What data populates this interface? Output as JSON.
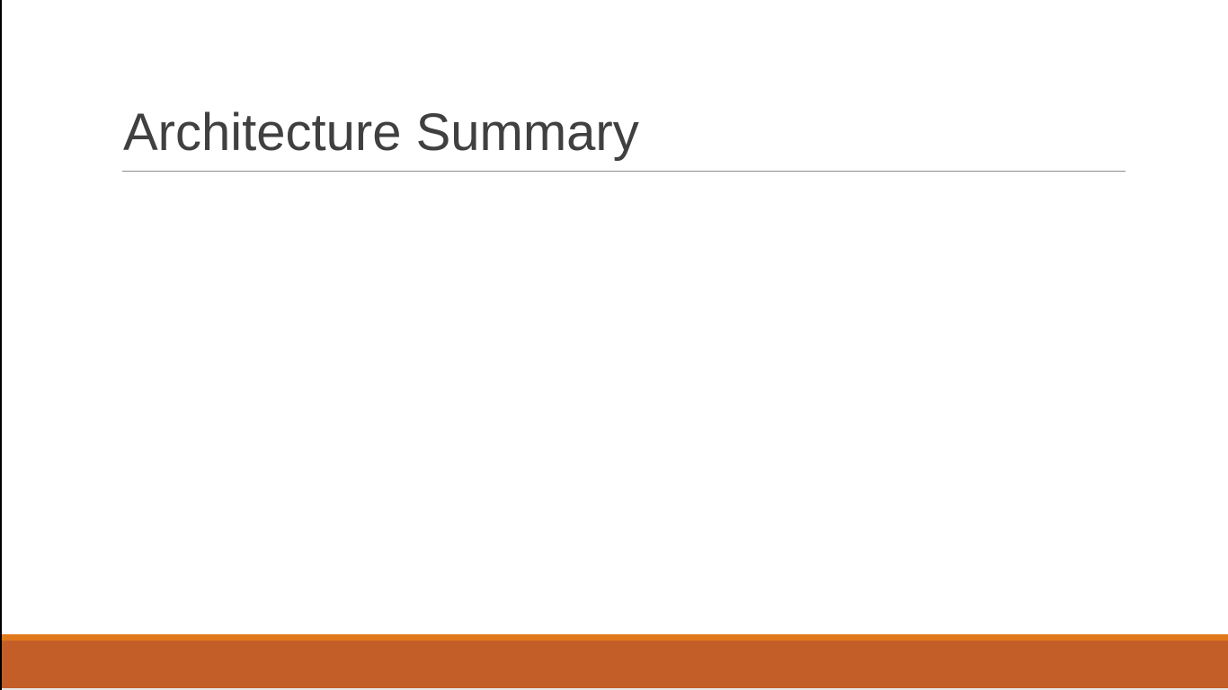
{
  "slide": {
    "title": "Architecture Summary",
    "colors": {
      "title_text": "#404040",
      "rule": "#8c8c8c",
      "footer_accent": "#e0781b",
      "footer_main": "#c45e28"
    }
  }
}
